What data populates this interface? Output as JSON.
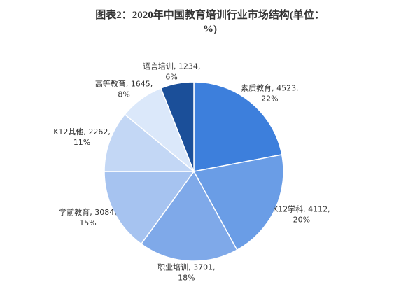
{
  "chart_data": {
    "type": "pie",
    "title": "图表2：2020年中国教育培训行业市场结构(单位：%)",
    "values": [
      4523,
      4112,
      3701,
      3084,
      2262,
      1645,
      1234
    ],
    "value_labels": [
      [
        "素质教育, 4523,",
        "22%"
      ],
      [
        "K12学科, 4112,",
        "20%"
      ],
      [
        "职业培训, 3701,",
        "18%"
      ],
      [
        "学前教育, 3084,",
        "15%"
      ],
      [
        "K12其他, 2262,",
        "11%"
      ],
      [
        "高等教育, 1645,",
        "8%"
      ],
      [
        "语言培训, 1234,",
        "6%"
      ]
    ],
    "colors": [
      "#3d7fdc",
      "#6a9de6",
      "#7fa9e9",
      "#a6c3f0",
      "#c3d7f5",
      "#dbe8fa",
      "#1b4f99"
    ]
  }
}
